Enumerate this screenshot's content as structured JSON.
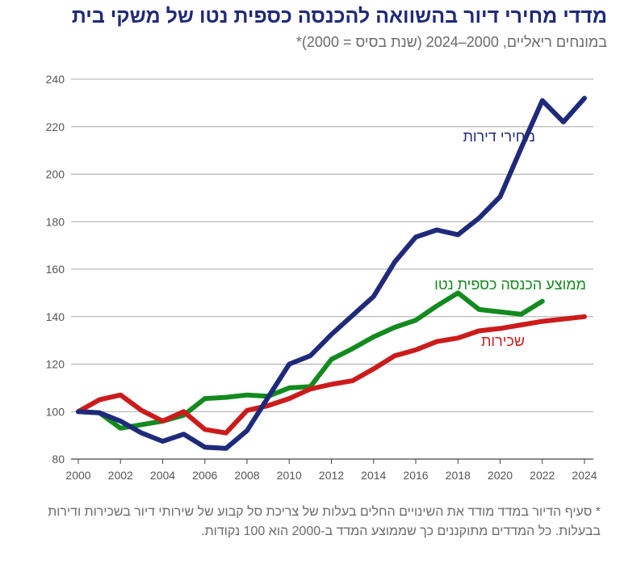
{
  "chart_data": {
    "type": "line",
    "title": "מדדי מחירי דיור בהשוואה להכנסה כספית נטו של משקי בית",
    "subtitle": "במונחים ריאליים, 2000–2024 (שנת בסיס = 2000)*",
    "footnote": "* סעיף הדיור במדד מודד את השינויים החלים בעלות של צריכת סל קבוע של שירותי דיור בשכירות ודירות בבעלות. כל המדדים מתוקננים כך שממוצע המדד ב-2000 הוא 100 נקודות.",
    "x": [
      2000,
      2001,
      2002,
      2003,
      2004,
      2005,
      2006,
      2007,
      2008,
      2009,
      2010,
      2011,
      2012,
      2013,
      2014,
      2015,
      2016,
      2017,
      2018,
      2019,
      2020,
      2021,
      2022,
      2023,
      2024
    ],
    "xticks": [
      "2000",
      "2002",
      "2004",
      "2006",
      "2008",
      "2010",
      "2012",
      "2014",
      "2016",
      "2018",
      "2020",
      "2022",
      "2024"
    ],
    "yticks": [
      "80",
      "100",
      "120",
      "140",
      "160",
      "180",
      "200",
      "220",
      "240"
    ],
    "xlim": [
      2000,
      2024
    ],
    "ylim": [
      80,
      240
    ],
    "grid": "horizontal",
    "series": [
      {
        "name": "מחירי דירות",
        "color": "#1f2a7a",
        "values": [
          100,
          99.5,
          96,
          91,
          87.5,
          90.5,
          85,
          84.5,
          92,
          106,
          120,
          123.5,
          132.5,
          140.5,
          148.5,
          163,
          173.5,
          176.5,
          174.5,
          181.5,
          190.5,
          211,
          231,
          222,
          232
        ]
      },
      {
        "name": "ממוצע הכנסה כספית נטו",
        "color": "#138a1e",
        "values": [
          100,
          99.5,
          93,
          94.5,
          96,
          98.5,
          105.5,
          106,
          107,
          106.5,
          110,
          110.5,
          122,
          126.5,
          131.5,
          135.5,
          138.5,
          144.5,
          150,
          143,
          142,
          141,
          146.5,
          null,
          null
        ]
      },
      {
        "name": "שכירות",
        "color": "#cc1b1b",
        "values": [
          100,
          105,
          107,
          100.5,
          96,
          100,
          92.5,
          91,
          100.5,
          102.5,
          105.5,
          109.5,
          111.5,
          113,
          118,
          123.5,
          126,
          129.5,
          131,
          134,
          135,
          136.5,
          138,
          139,
          140
        ]
      }
    ]
  }
}
